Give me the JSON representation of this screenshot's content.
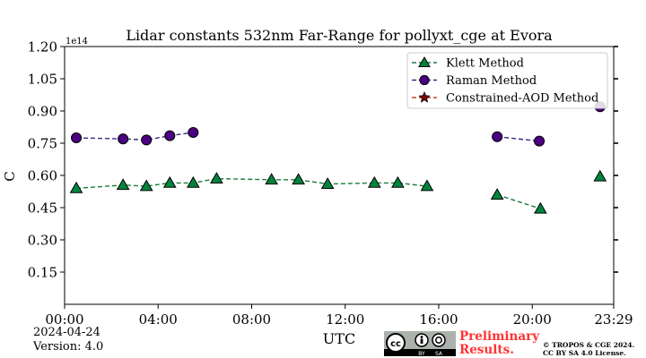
{
  "chart_data": {
    "type": "scatter",
    "title": "Lidar constants 532nm Far-Range for pollyxt_cge at Evora",
    "xlabel": "UTC",
    "ylabel": "C",
    "offset_label": "1e14",
    "x_unit": "hours",
    "xlim": [
      0,
      23.483
    ],
    "ylim": [
      0,
      1.2
    ],
    "x_ticks": [
      0,
      4,
      8,
      12,
      16,
      20,
      23.483
    ],
    "x_tick_labels": [
      "00:00",
      "04:00",
      "08:00",
      "12:00",
      "16:00",
      "20:00",
      "23:29"
    ],
    "y_ticks": [
      0.15,
      0.3,
      0.45,
      0.6,
      0.75,
      0.9,
      1.05,
      1.2
    ],
    "y_tick_labels": [
      "0.15",
      "0.30",
      "0.45",
      "0.60",
      "0.75",
      "0.90",
      "1.05",
      "1.20"
    ],
    "grid": false,
    "legend_position": "top-right",
    "series": [
      {
        "name": "Klett Method",
        "marker": "triangle",
        "color": "#00843d",
        "line_color": "#1b7a3f",
        "points": [
          [
            0.5,
            0.54
          ],
          [
            2.5,
            0.555
          ],
          [
            3.5,
            0.55
          ],
          [
            4.5,
            0.565
          ],
          [
            5.5,
            0.565
          ],
          [
            6.5,
            0.585
          ],
          [
            8.85,
            0.58
          ],
          [
            10.0,
            0.58
          ],
          [
            11.25,
            0.56
          ],
          [
            13.25,
            0.565
          ],
          [
            14.25,
            0.565
          ],
          [
            15.5,
            0.55
          ],
          [
            18.5,
            0.51
          ],
          [
            20.35,
            0.445
          ],
          [
            22.9,
            0.595
          ]
        ]
      },
      {
        "name": "Raman Method",
        "marker": "circle",
        "color": "#4b0082",
        "line_color": "#3b2a80",
        "points": [
          [
            0.5,
            0.775
          ],
          [
            2.5,
            0.77
          ],
          [
            3.5,
            0.765
          ],
          [
            4.5,
            0.785
          ],
          [
            5.5,
            0.8
          ],
          [
            18.5,
            0.78
          ],
          [
            20.3,
            0.76
          ],
          [
            22.9,
            0.92
          ]
        ]
      },
      {
        "name": "Constrained-AOD Method",
        "marker": "star",
        "color": "#8b0000",
        "line_color": "#c04a1a",
        "points": []
      }
    ]
  },
  "footer": {
    "date": "2024-04-24",
    "version": "Version: 4.0",
    "preliminary_line1": "Preliminary",
    "preliminary_line2": "Results.",
    "credit_line1": "© TROPOS & CGE 2024.",
    "credit_line2": "CC BY SA 4.0 License.",
    "cc_badge_labels": [
      "cc",
      "BY",
      "SA"
    ]
  }
}
